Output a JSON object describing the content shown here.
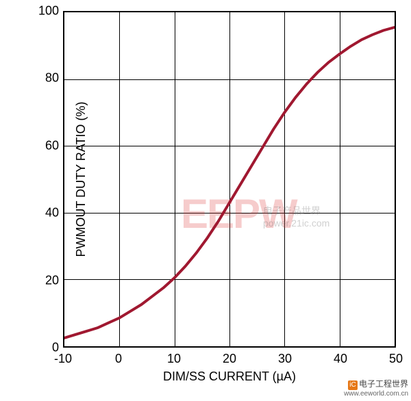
{
  "chart": {
    "type": "line",
    "xlabel": "DIM/SS CURRENT (µA)",
    "ylabel": "PWMOUT DUTY RATIO (%)",
    "label_fontsize": 18,
    "tick_fontsize": 18,
    "xlim": [
      -10,
      50
    ],
    "ylim": [
      0,
      100
    ],
    "xtick_step": 10,
    "ytick_step": 20,
    "xticks": [
      -10,
      0,
      10,
      20,
      30,
      40,
      50
    ],
    "yticks": [
      0,
      20,
      40,
      60,
      80,
      100
    ],
    "background_color": "#ffffff",
    "grid_color": "#000000",
    "border_color": "#000000",
    "border_width": 2,
    "grid_width": 1,
    "line_color": "#a01830",
    "line_width": 4,
    "data": {
      "x": [
        -10,
        -8,
        -6,
        -4,
        -2,
        0,
        2,
        4,
        6,
        8,
        10,
        12,
        14,
        16,
        18,
        20,
        22,
        24,
        26,
        28,
        30,
        32,
        34,
        36,
        38,
        40,
        42,
        44,
        46,
        48,
        50
      ],
      "y": [
        2.5,
        3.5,
        4.5,
        5.5,
        7.0,
        8.5,
        10.5,
        12.5,
        15.0,
        17.5,
        20.5,
        24.0,
        28.0,
        32.5,
        37.5,
        43.0,
        48.5,
        54.0,
        59.5,
        65.0,
        70.0,
        74.5,
        78.5,
        82.0,
        85.0,
        87.5,
        89.8,
        91.8,
        93.3,
        94.6,
        95.5
      ]
    }
  },
  "watermarks": {
    "main": "EEPW",
    "sub": "电子产品世界",
    "url": "power.21ic.com",
    "corner_cn": "电子工程世界",
    "corner_url": "www.eeworld.com.cn"
  }
}
